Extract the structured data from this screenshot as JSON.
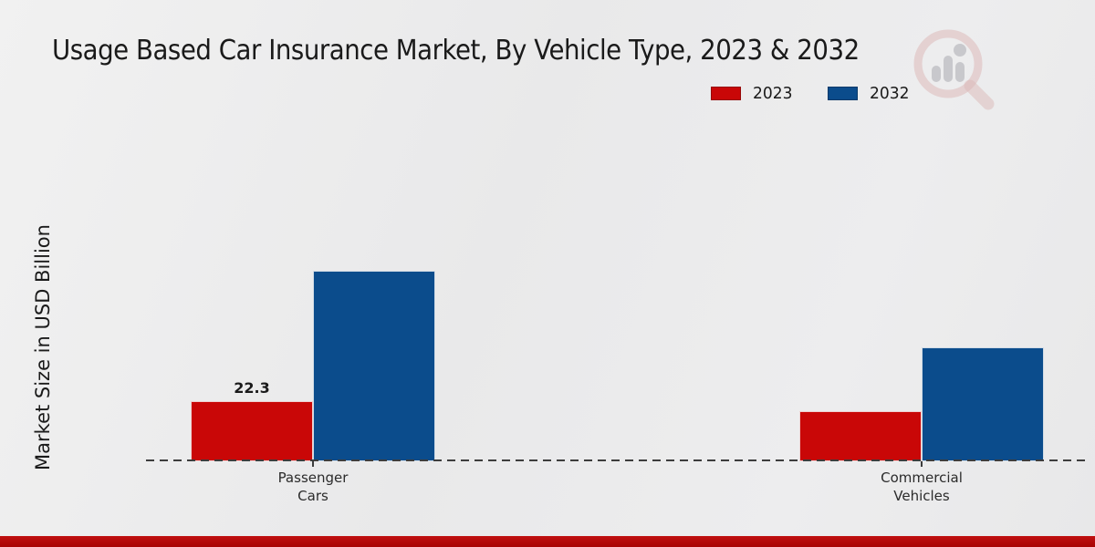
{
  "header": {
    "title": "Usage Based Car Insurance Market, By Vehicle Type, 2023 & 2032"
  },
  "chart": {
    "ylabel": "Market Size in USD Billion"
  },
  "chart_data": {
    "type": "bar",
    "title": "Usage Based Car Insurance Market, By Vehicle Type, 2023 & 2032",
    "xlabel": "",
    "ylabel": "Market Size in USD Billion",
    "categories": [
      "Passenger Cars",
      "Commercial Vehicles"
    ],
    "series": [
      {
        "name": "2023",
        "color": "#c90707",
        "values": [
          22.3,
          18.7
        ],
        "value_labels": [
          "22.3",
          ""
        ]
      },
      {
        "name": "2032",
        "color": "#0b4c8c",
        "values": [
          71.0,
          42.5
        ],
        "value_labels": [
          "",
          ""
        ]
      }
    ],
    "ylim": [
      0,
      120
    ],
    "grid": false,
    "legend_position": "top-right",
    "baseline_style": "dashed"
  },
  "watermark": {
    "icon": "magnifier-bar-chart-logo",
    "ring_color": "#dcb9b9",
    "bars_color": "#c5c5c9"
  },
  "footer": {
    "accent_color": "#b50d0d"
  }
}
